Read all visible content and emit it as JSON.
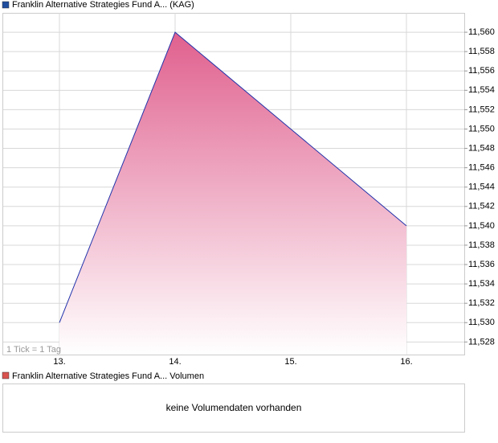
{
  "chart_data": {
    "type": "area",
    "title": "Franklin Alternative Strategies Fund A... (KAG)",
    "legend_color": "#1f4e9e",
    "categories": [
      "13.",
      "14.",
      "15.",
      "16."
    ],
    "series": [
      {
        "name": "Franklin Alternative Strategies Fund A... (KAG)",
        "color": "#2233aa",
        "fill": "#e0608e",
        "values": [
          11.53,
          11.56,
          11.55,
          11.54
        ]
      }
    ],
    "ylim": [
      11.5267,
      11.562
    ],
    "yticks": [
      {
        "value": 11.528,
        "label": "11,528"
      },
      {
        "value": 11.53,
        "label": "11,530"
      },
      {
        "value": 11.532,
        "label": "11,532"
      },
      {
        "value": 11.534,
        "label": "11,534"
      },
      {
        "value": 11.536,
        "label": "11,536"
      },
      {
        "value": 11.538,
        "label": "11,538"
      },
      {
        "value": 11.54,
        "label": "11,540"
      },
      {
        "value": 11.542,
        "label": "11,542"
      },
      {
        "value": 11.544,
        "label": "11,544"
      },
      {
        "value": 11.546,
        "label": "11,546"
      },
      {
        "value": 11.548,
        "label": "11,548"
      },
      {
        "value": 11.55,
        "label": "11,550"
      },
      {
        "value": 11.552,
        "label": "11,552"
      },
      {
        "value": 11.554,
        "label": "11,554"
      },
      {
        "value": 11.556,
        "label": "11,556"
      },
      {
        "value": 11.558,
        "label": "11,558"
      },
      {
        "value": 11.56,
        "label": "11,560"
      }
    ],
    "grid": true,
    "note": "1 Tick = 1 Tag"
  },
  "volume_panel": {
    "title": "Franklin Alternative Strategies Fund A... Volumen",
    "legend_color": "#d9534f",
    "message": "keine Volumendaten vorhanden"
  }
}
